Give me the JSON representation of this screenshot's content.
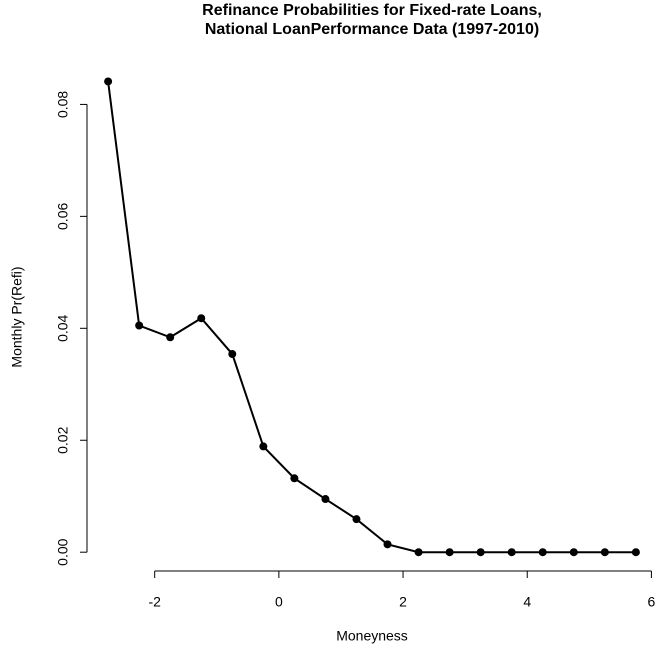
{
  "chart_data": {
    "type": "line",
    "title": [
      "Refinance Probabilities for Fixed-rate Loans,",
      "National LoanPerformance Data (1997-2010)"
    ],
    "x_label": "Moneyness",
    "y_label": "Monthly Pr(Refi)",
    "x": [
      -2.75,
      -2.25,
      -1.75,
      -1.25,
      -0.75,
      -0.25,
      0.25,
      0.75,
      1.25,
      1.75,
      2.25,
      2.75,
      3.25,
      3.75,
      4.25,
      4.75,
      5.25,
      5.75
    ],
    "series": [
      {
        "color": "#000000",
        "values": [
          0.0841,
          0.0405,
          0.0384,
          0.0418,
          0.0354,
          0.0189,
          0.0132,
          0.0095,
          0.0059,
          0.0014,
          0,
          0,
          0,
          0,
          0,
          0,
          0,
          0
        ]
      }
    ],
    "xlim": [
      -3.09,
      6.09
    ],
    "xticks": [
      -2,
      0,
      2,
      4,
      6
    ],
    "ylim": [
      -0.00336,
      0.0874
    ],
    "yticks": [
      {
        "value": 0,
        "label": "0.00"
      },
      {
        "value": 0.02,
        "label": "0.02"
      },
      {
        "value": 0.04,
        "label": "0.04"
      },
      {
        "value": 0.06,
        "label": "0.06"
      },
      {
        "value": 0.08,
        "label": "0.08"
      }
    ]
  }
}
